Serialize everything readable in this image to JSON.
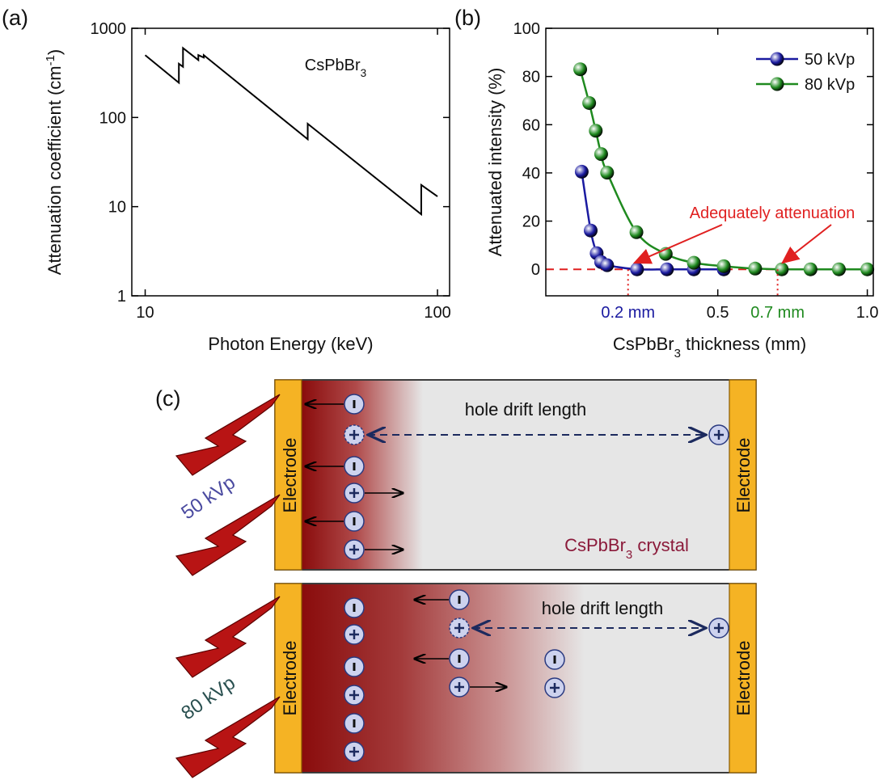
{
  "panel_labels": [
    "(a)",
    "(b)",
    "(c)"
  ],
  "chart_data": [
    {
      "type": "line",
      "x_label": "Photon Energy (keV)",
      "y_label": "Attenuation coefficient (cm-1)",
      "annotation": "CsPbBr3",
      "log_x": true,
      "log_y": true,
      "xlim": [
        9,
        110
      ],
      "ylim": [
        1,
        1000
      ],
      "xticks": [
        10,
        100
      ],
      "yticks": [
        1,
        10,
        100,
        1000
      ],
      "x": [
        10,
        13.04,
        13.04,
        13.47,
        13.47,
        15.2,
        15.2,
        15.86,
        15.86,
        35.98,
        35.98,
        88,
        88,
        100
      ],
      "series": [
        {
          "color": "#000000",
          "values": [
            500,
            245,
            400,
            370,
            600,
            440,
            500,
            470,
            500,
            57,
            85,
            8.2,
            17.5,
            13
          ]
        }
      ]
    },
    {
      "type": "line",
      "x_label": "CsPbBr3 thickness (mm)",
      "y_label": "Attenuated intensity (%)",
      "annotation": "Adequately attenuation",
      "smooth": true,
      "xlim": [
        -0.075,
        1.02
      ],
      "ylim": [
        -11,
        100
      ],
      "xticks": [
        0.5,
        {
          "value": 1,
          "label": "1.0"
        }
      ],
      "yticks": [
        0,
        20,
        40,
        60,
        80,
        100
      ],
      "legend": "upper right",
      "reference_line": {
        "y": 0,
        "color": "#e02020"
      },
      "markers": [
        {
          "value": 0.2,
          "label": "0.2 mm",
          "color": "#1a1aa0"
        },
        {
          "value": 0.7,
          "label": "0.7 mm",
          "color": "#1f8a1f"
        }
      ],
      "series": [
        {
          "name": "50 kVp",
          "color": "#1a1aa0",
          "x": [
            0.045,
            0.075,
            0.095,
            0.11,
            0.13,
            0.23,
            0.33,
            0.42,
            0.52
          ],
          "values": [
            40.5,
            16.1,
            6.7,
            3.0,
            1.7,
            0,
            0,
            0,
            0
          ]
        },
        {
          "name": "80 kVp",
          "color": "#1f8a1f",
          "x": [
            0.04,
            0.07,
            0.092,
            0.11,
            0.13,
            0.228,
            0.326,
            0.42,
            0.52,
            0.625,
            0.714,
            0.81,
            0.905,
            1.0
          ],
          "values": [
            83,
            69,
            57.5,
            47.8,
            40.1,
            15.4,
            6.4,
            2.7,
            1.3,
            0.3,
            0,
            0,
            0,
            0
          ]
        }
      ]
    }
  ],
  "diagram": {
    "panels": [
      {
        "source": "50 kVp",
        "drift": "hole drift length",
        "crystal": "CsPbBr3 crystal",
        "electrode": "Electrode"
      },
      {
        "source": "80 kVp",
        "drift": "hole drift length",
        "electrode": "Electrode"
      }
    ]
  }
}
